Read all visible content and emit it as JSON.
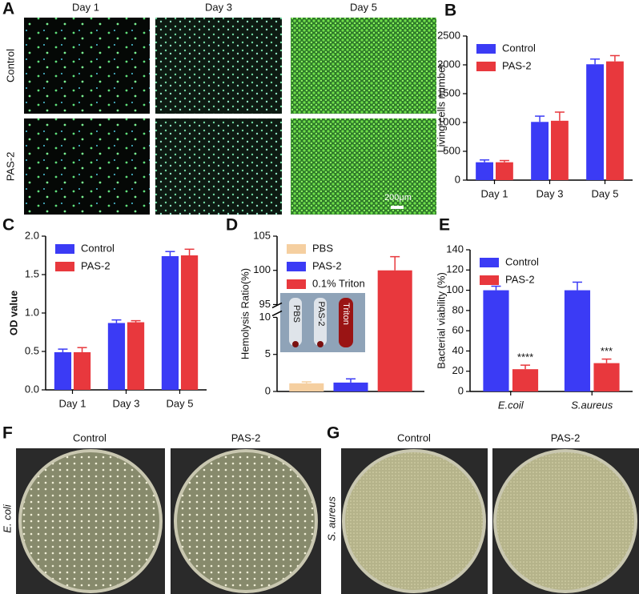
{
  "panel_labels": [
    "A",
    "B",
    "C",
    "D",
    "E",
    "F",
    "G"
  ],
  "panel_a": {
    "columns": [
      "Day 1",
      "Day 3",
      "Day 5"
    ],
    "rows": [
      "Control",
      "PAS-2"
    ],
    "scale_bar": "200μm"
  },
  "panel_f": {
    "columns": [
      "Control",
      "PAS-2"
    ],
    "row": "E. coli"
  },
  "panel_g": {
    "columns": [
      "Control",
      "PAS-2"
    ],
    "row": "S. aureus"
  },
  "chart_data": [
    {
      "type": "bar",
      "ylabel": "Living cells number",
      "categories": [
        "Day 1",
        "Day 3",
        "Day 5"
      ],
      "series": [
        {
          "name": "Control",
          "color": "#3b3bf5",
          "values": [
            310,
            1010,
            2010
          ],
          "errors": [
            40,
            100,
            90
          ]
        },
        {
          "name": "PAS-2",
          "color": "#e8383d",
          "values": [
            310,
            1030,
            2060
          ],
          "errors": [
            30,
            150,
            100
          ]
        }
      ],
      "ylim": [
        0,
        2500
      ],
      "yticks": [
        0,
        500,
        1000,
        1500,
        2000,
        2500
      ],
      "legend": "upper left"
    },
    {
      "type": "bar",
      "ylabel": "OD value",
      "categories": [
        "Day 1",
        "Day 3",
        "Day 5"
      ],
      "series": [
        {
          "name": "Control",
          "color": "#3b3bf5",
          "values": [
            0.49,
            0.87,
            1.74
          ],
          "errors": [
            0.04,
            0.04,
            0.06
          ]
        },
        {
          "name": "PAS-2",
          "color": "#e8383d",
          "values": [
            0.49,
            0.88,
            1.75
          ],
          "errors": [
            0.06,
            0.02,
            0.08
          ]
        }
      ],
      "ylim": [
        0,
        2
      ],
      "yticks": [
        {
          "value": 0,
          "label": "0.0"
        },
        0.5,
        {
          "value": 1,
          "label": "1.0"
        },
        1.5,
        {
          "value": 2,
          "label": "2.0"
        }
      ],
      "legend": "upper left"
    },
    {
      "type": "bar",
      "ylabel": "Hemolysis Ratio(%)",
      "categories": [
        null
      ],
      "series": [
        {
          "name": "PBS",
          "color": "#f5cfa0",
          "values": [
            1.1
          ],
          "errors": [
            0.2
          ]
        },
        {
          "name": "PAS-2",
          "color": "#3b3bf5",
          "values": [
            1.2
          ],
          "errors": [
            0.5
          ]
        },
        {
          "name": "0.1% Triton",
          "color": "#e8383d",
          "values": [
            100
          ],
          "errors": [
            2
          ]
        }
      ],
      "ylim": [
        0,
        105
      ],
      "yticks": [
        0,
        5,
        10,
        95,
        100,
        105
      ],
      "axis_break": [
        10,
        95
      ],
      "legend": "upper left",
      "inset_labels": [
        "PBS",
        "PAS-2",
        "Triton"
      ]
    },
    {
      "type": "bar",
      "ylabel": "Bacterial viability (%)",
      "categories": [
        "E.coil",
        "S.aureus"
      ],
      "series": [
        {
          "name": "Control",
          "color": "#3b3bf5",
          "values": [
            100,
            100
          ],
          "errors": [
            4,
            8
          ]
        },
        {
          "name": "PAS-2",
          "color": "#e8383d",
          "values": [
            22,
            28
          ],
          "errors": [
            4,
            4
          ],
          "annotations": [
            "****",
            "***"
          ]
        }
      ],
      "ylim": [
        0,
        140
      ],
      "yticks": [
        0,
        20,
        40,
        60,
        80,
        100,
        120,
        140
      ],
      "legend": "upper left"
    }
  ]
}
